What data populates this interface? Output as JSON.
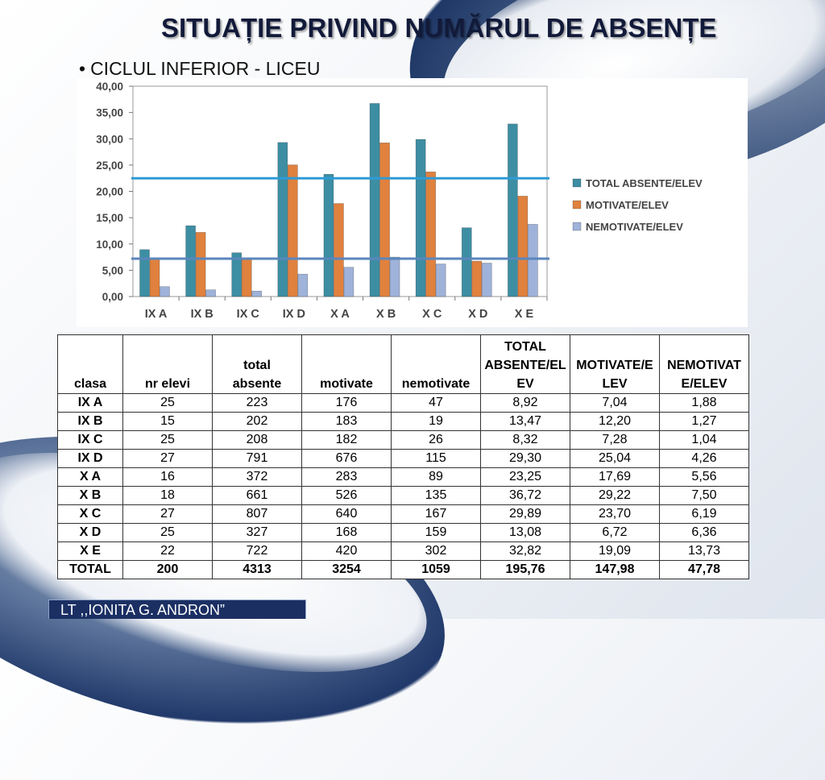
{
  "slide": {
    "title": "SITUAȚIE PRIVIND NUMĂRUL DE ABSENȚE",
    "subtitle_bullet": "•",
    "subtitle": "CICLUL INFERIOR - LICEU",
    "footer": "LT ,,IONITA G. ANDRON”"
  },
  "chart_data": {
    "type": "bar",
    "categories": [
      "IX A",
      "IX B",
      "IX C",
      "IX D",
      "X A",
      "X B",
      "X C",
      "X D",
      "X E"
    ],
    "series": [
      {
        "name": "TOTAL ABSENTE/ELEV",
        "color": "#3d8ea3",
        "values": [
          8.92,
          13.47,
          8.32,
          29.3,
          23.25,
          36.72,
          29.89,
          13.08,
          32.82
        ]
      },
      {
        "name": "MOTIVATE/ELEV",
        "color": "#e0813e",
        "values": [
          7.04,
          12.2,
          7.28,
          25.04,
          17.69,
          29.22,
          23.7,
          6.72,
          19.09
        ]
      },
      {
        "name": "NEMOTIVATE/ELEV",
        "color": "#9fb2d9",
        "values": [
          1.88,
          1.27,
          1.04,
          4.26,
          5.56,
          7.5,
          6.19,
          6.36,
          13.73
        ]
      }
    ],
    "reference_lines": [
      {
        "value": 22.5,
        "color": "#2e9bd6"
      },
      {
        "value": 7.2,
        "color": "#5b86bd"
      }
    ],
    "ylim": [
      0,
      40
    ],
    "yticks": [
      "0,00",
      "5,00",
      "10,00",
      "15,00",
      "20,00",
      "25,00",
      "30,00",
      "35,00",
      "40,00"
    ],
    "ytick_values": [
      0,
      5,
      10,
      15,
      20,
      25,
      30,
      35,
      40
    ],
    "grid": false,
    "legend": "right",
    "xlabel": "",
    "ylabel": ""
  },
  "table": {
    "headers": [
      "clasa",
      "nr elevi",
      "total absente",
      "motivate",
      "nemotivate",
      "TOTAL ABSENTE/ELEV",
      "MOTIVATE/ELEV",
      "NEMOTIVATE/ELEV"
    ],
    "header_lines": [
      [
        "clasa"
      ],
      [
        "nr elevi"
      ],
      [
        "total",
        "absente"
      ],
      [
        "motivate"
      ],
      [
        "nemotivate"
      ],
      [
        "TOTAL",
        "ABSENTE/EL",
        "EV"
      ],
      [
        "MOTIVATE/E",
        "LEV"
      ],
      [
        "NEMOTIVAT",
        "E/ELEV"
      ]
    ],
    "rows": [
      [
        "IX A",
        "25",
        "223",
        "176",
        "47",
        "8,92",
        "7,04",
        "1,88"
      ],
      [
        "IX B",
        "15",
        "202",
        "183",
        "19",
        "13,47",
        "12,20",
        "1,27"
      ],
      [
        "IX C",
        "25",
        "208",
        "182",
        "26",
        "8,32",
        "7,28",
        "1,04"
      ],
      [
        "IX D",
        "27",
        "791",
        "676",
        "115",
        "29,30",
        "25,04",
        "4,26"
      ],
      [
        "X A",
        "16",
        "372",
        "283",
        "89",
        "23,25",
        "17,69",
        "5,56"
      ],
      [
        "X B",
        "18",
        "661",
        "526",
        "135",
        "36,72",
        "29,22",
        "7,50"
      ],
      [
        "X C",
        "27",
        "807",
        "640",
        "167",
        "29,89",
        "23,70",
        "6,19"
      ],
      [
        "X D",
        "25",
        "327",
        "168",
        "159",
        "13,08",
        "6,72",
        "6,36"
      ],
      [
        "X E",
        "22",
        "722",
        "420",
        "302",
        "32,82",
        "19,09",
        "13,73"
      ]
    ],
    "total_row": [
      "TOTAL",
      "200",
      "4313",
      "3254",
      "1059",
      "195,76",
      "147,98",
      "47,78"
    ]
  }
}
